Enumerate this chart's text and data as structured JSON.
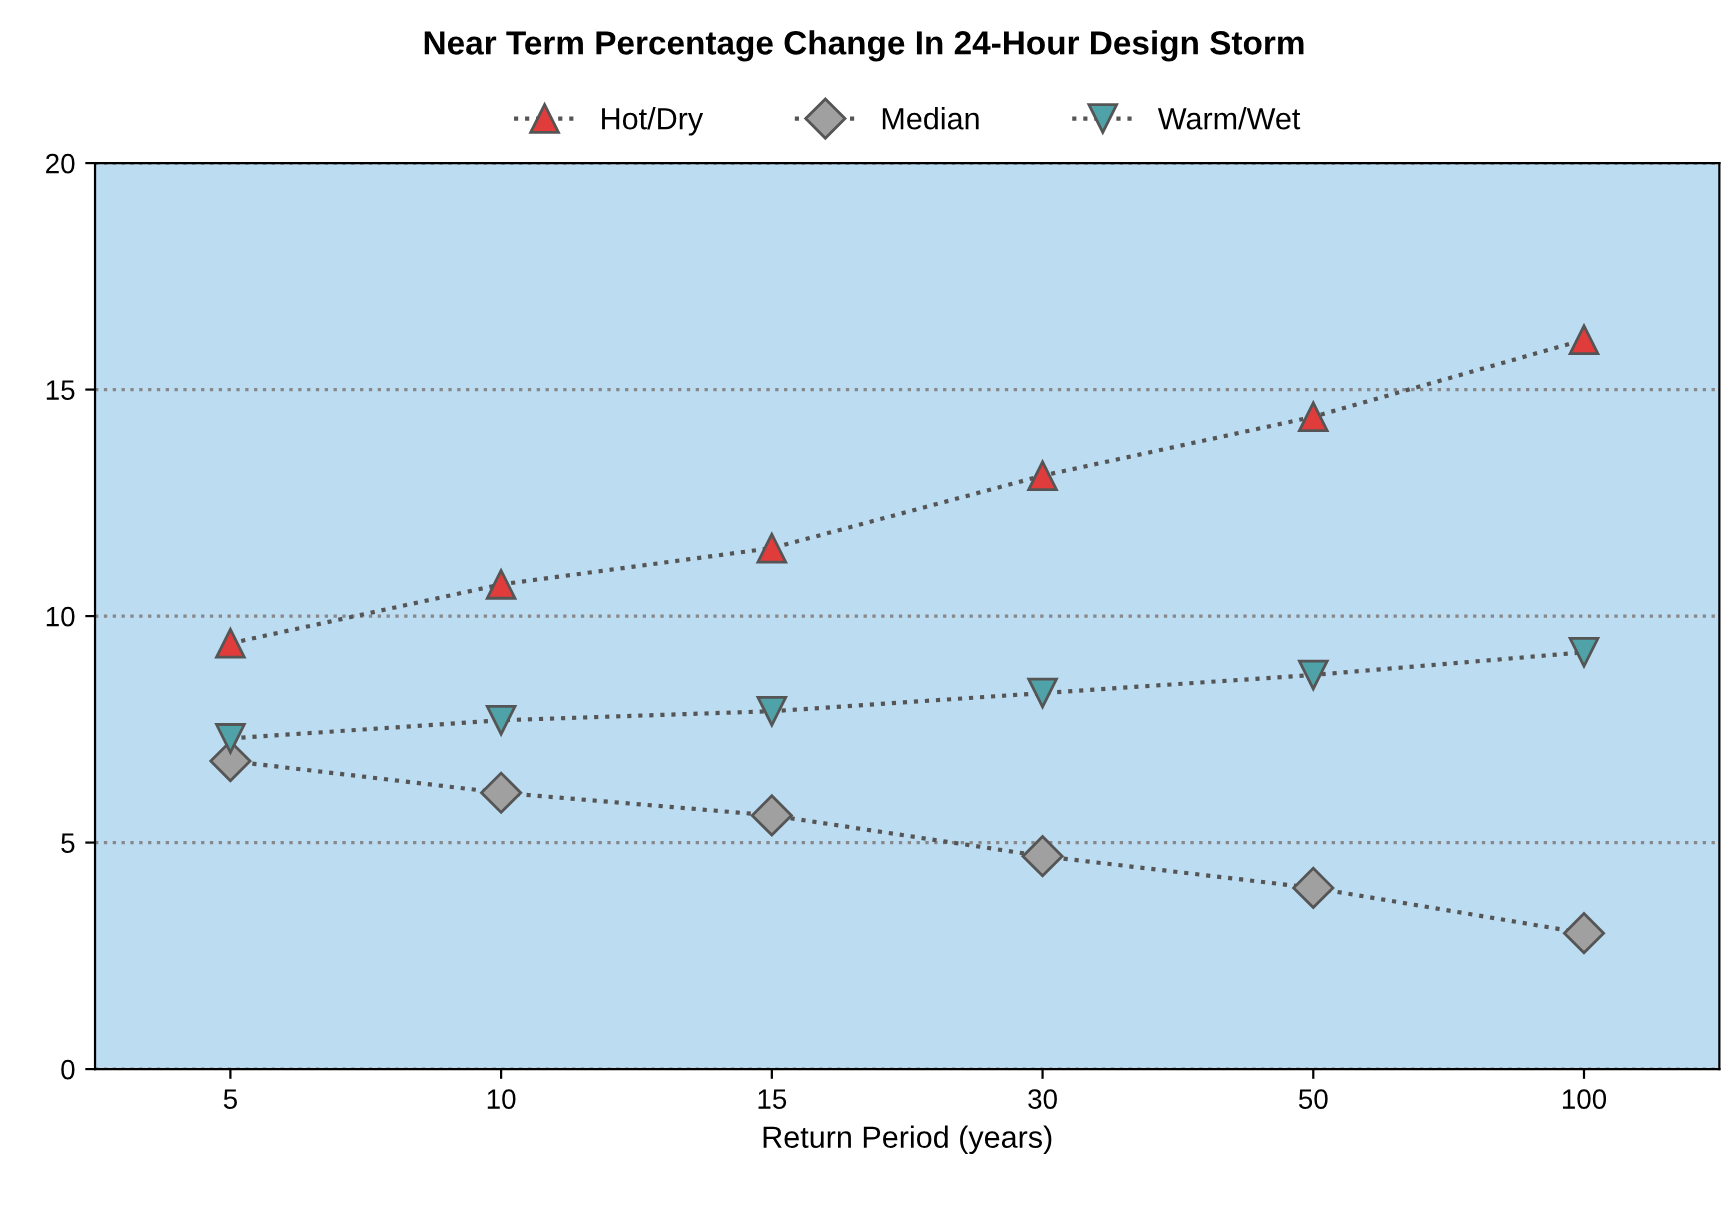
{
  "chart_data": {
    "type": "line",
    "title": "Near Term Percentage Change In 24-Hour Design Storm",
    "xlabel": "Return Period (years)",
    "categories": [
      "5",
      "10",
      "15",
      "30",
      "50",
      "100"
    ],
    "series": [
      {
        "name": "Hot/Dry",
        "color": "#e03c3c",
        "marker": "triangle",
        "values": [
          9.4,
          10.7,
          11.5,
          13.1,
          14.4,
          16.1
        ]
      },
      {
        "name": "Median",
        "color": "#a0a0a0",
        "marker": "diamond",
        "values": [
          6.8,
          6.1,
          5.6,
          4.7,
          4.0,
          3.0
        ]
      },
      {
        "name": "Warm/Wet",
        "color": "#4fa3a8",
        "marker": "triangle_down",
        "values": [
          7.3,
          7.7,
          7.9,
          8.3,
          8.7,
          9.2
        ]
      }
    ],
    "ylim": [
      0,
      20
    ],
    "yticks": [
      0,
      5,
      10,
      15,
      20
    ],
    "grid": "y",
    "legend": "top",
    "line_style": "dotted"
  }
}
